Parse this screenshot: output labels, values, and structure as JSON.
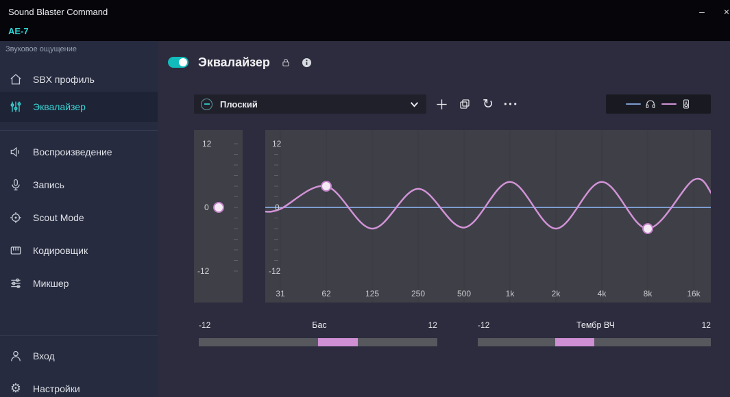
{
  "window": {
    "title": "Sound Blaster Command",
    "device": "AE-7"
  },
  "titlebar": {
    "minimize": "–",
    "close": "×"
  },
  "sidebar": {
    "section_label": "Звуковое ощущение",
    "items": [
      {
        "label": "SBX профиль"
      },
      {
        "label": "Эквалайзер"
      },
      {
        "label": "Воспроизведение"
      },
      {
        "label": "Запись"
      },
      {
        "label": "Scout Mode"
      },
      {
        "label": "Кодировщик"
      },
      {
        "label": "Микшер"
      }
    ],
    "footer_items": [
      {
        "label": "Вход"
      },
      {
        "label": "Настройки"
      }
    ]
  },
  "equalizer": {
    "title": "Эквалайзер",
    "enabled": true,
    "preset": "Плоский",
    "y_axis_labels": [
      "12",
      "0",
      "-12"
    ],
    "db_range": [
      -12,
      12
    ],
    "frequencies": [
      "31",
      "62",
      "125",
      "250",
      "500",
      "1k",
      "2k",
      "4k",
      "8k",
      "16k"
    ],
    "curve": [
      [
        -0.35,
        -0.8
      ],
      [
        0,
        -0.3
      ],
      [
        1,
        4
      ],
      [
        2,
        -4
      ],
      [
        3,
        3.5
      ],
      [
        4,
        -3.8
      ],
      [
        5,
        4.8
      ],
      [
        6,
        -4
      ],
      [
        7,
        4.8
      ],
      [
        8,
        -4
      ],
      [
        9,
        5.2
      ],
      [
        9.4,
        2.5
      ]
    ],
    "handles": [
      {
        "freq": "62",
        "db": 4
      },
      {
        "freq": "8k",
        "db": -4
      }
    ],
    "master_gain": {
      "value": 0,
      "labels": [
        "12",
        "0",
        "-12"
      ]
    }
  },
  "sliders": {
    "bass": {
      "label": "Бас",
      "min_label": "-12",
      "max_label": "12",
      "min": -12,
      "max": 12,
      "value": 4
    },
    "treble": {
      "label": "Тембр ВЧ",
      "min_label": "-12",
      "max_label": "12",
      "min": -12,
      "max": 12,
      "value": -4
    }
  },
  "colors": {
    "accent_teal": "#13bcbc",
    "active_item_teal": "#3bd3d2",
    "curve_pink": "#d193d6",
    "zero_line_blue": "#7c9cd0",
    "handle_fill": "#f4ebf5",
    "handle_stroke": "#c080c6",
    "graph_bg": "#3f3f48"
  }
}
